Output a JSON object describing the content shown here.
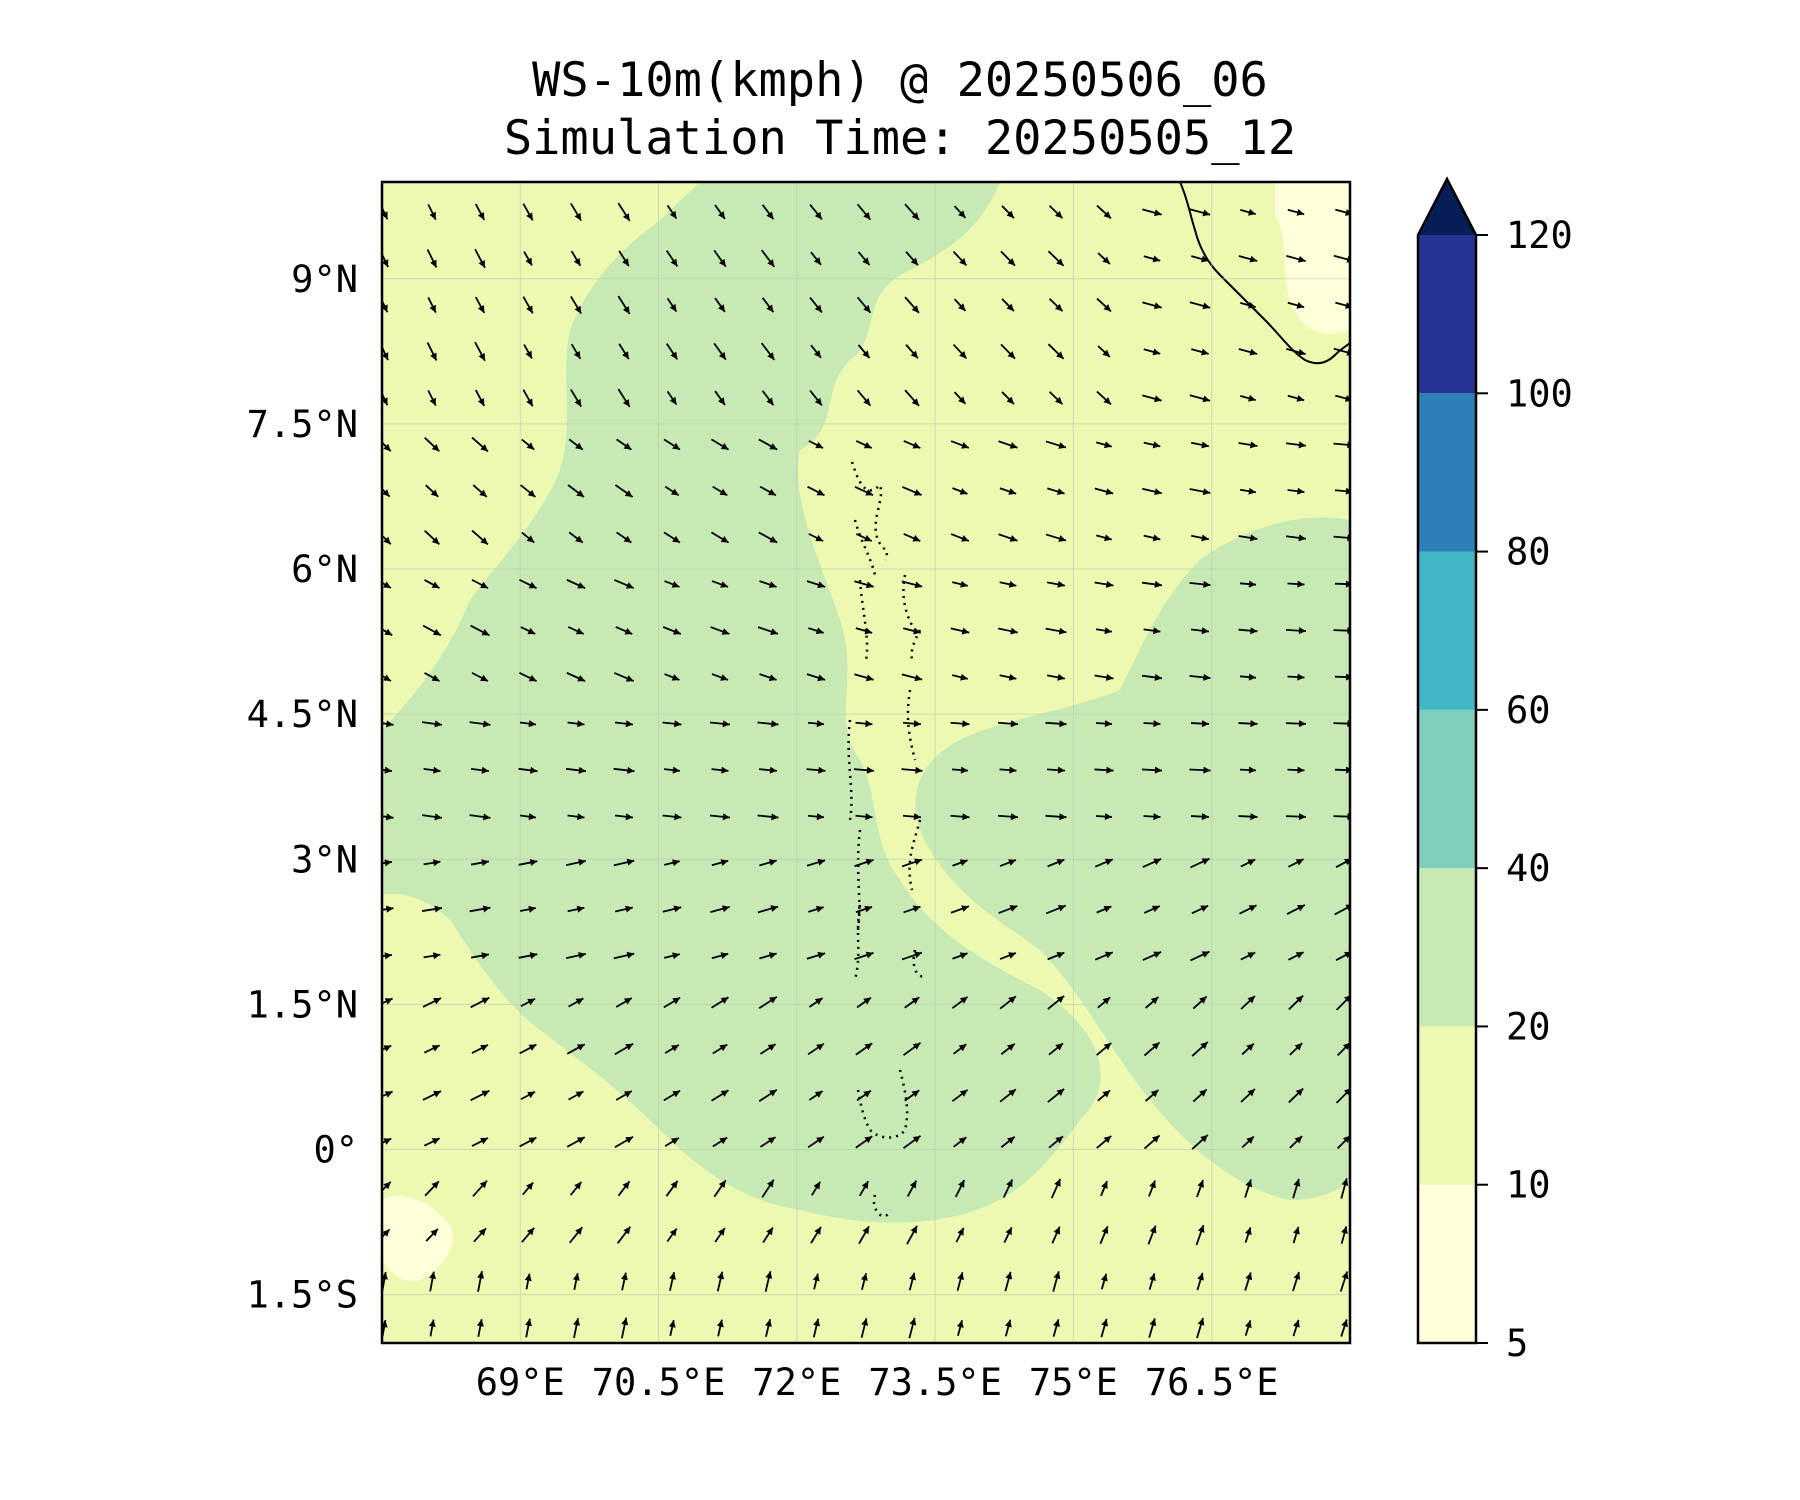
{
  "title": {
    "line1": "WS-10m(kmph) @ 20250506_06",
    "line2": "Simulation Time: 20250505_12"
  },
  "map": {
    "lon_range": [
      67.5,
      78.0
    ],
    "lat_range": [
      -2.0,
      10.0
    ],
    "lat_ticks": [
      {
        "value": 9.0,
        "label": "9°N"
      },
      {
        "value": 7.5,
        "label": "7.5°N"
      },
      {
        "value": 6.0,
        "label": "6°N"
      },
      {
        "value": 4.5,
        "label": "4.5°N"
      },
      {
        "value": 3.0,
        "label": "3°N"
      },
      {
        "value": 1.5,
        "label": "1.5°N"
      },
      {
        "value": 0.0,
        "label": "0°"
      },
      {
        "value": -1.5,
        "label": "1.5°S"
      }
    ],
    "lon_ticks": [
      {
        "value": 69.0,
        "label": "69°E"
      },
      {
        "value": 70.5,
        "label": "70.5°E"
      },
      {
        "value": 72.0,
        "label": "72°E"
      },
      {
        "value": 73.5,
        "label": "73.5°E"
      },
      {
        "value": 75.0,
        "label": "75°E"
      },
      {
        "value": 76.5,
        "label": "76.5°E"
      }
    ],
    "gridlines": true
  },
  "colorbar": {
    "levels": [
      5,
      10,
      20,
      40,
      60,
      80,
      100,
      120
    ],
    "labels": [
      "5",
      "10",
      "20",
      "40",
      "60",
      "80",
      "100",
      "120"
    ],
    "colors": [
      "#ffffd9",
      "#edf8b1",
      "#c7e9b4",
      "#7fcdbb",
      "#41b6c4",
      "#2c7fb8",
      "#253494"
    ],
    "extend_color": "#081d58",
    "extend": "max"
  },
  "colors": {
    "land_low": "#ffffd9",
    "field_low": "#edf8b1",
    "field_mid": "#c7e9b4",
    "coast": "#000000",
    "arrow": "#000000"
  }
}
